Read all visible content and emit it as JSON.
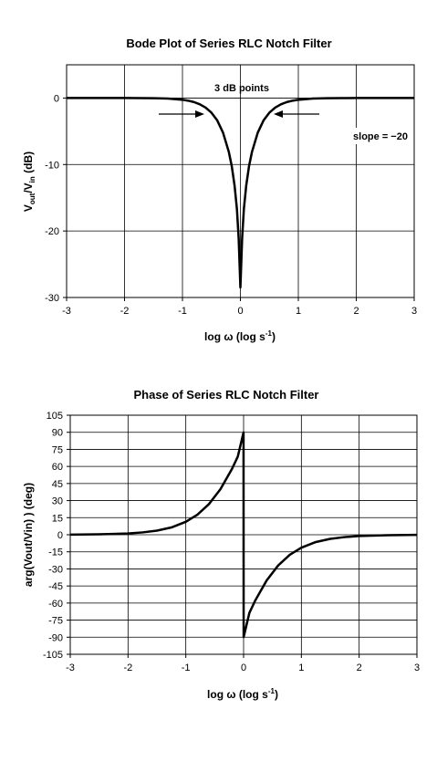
{
  "chart_data": [
    {
      "type": "line",
      "title": "Bode Plot of Series RLC Notch Filter",
      "xlabel": "log ω (log s",
      "xlabel_superscript": "-1",
      "xlabel_suffix": ")",
      "ylabel": "V",
      "ylabel_sub1": "out",
      "ylabel_mid": "/V",
      "ylabel_sub2": "in",
      "ylabel_suffix": " (dB)",
      "xlim": [
        -3,
        3
      ],
      "ylim": [
        -30,
        5
      ],
      "x_ticks": [
        -3,
        -2,
        -1,
        0,
        1,
        2,
        3
      ],
      "x_tick_labels": [
        "-3",
        "-2",
        "-1",
        "0",
        "1",
        "2",
        "3"
      ],
      "y_ticks": [
        0,
        -10,
        -20,
        -30
      ],
      "y_tick_labels": [
        "0",
        "-10",
        "-20",
        "-30"
      ],
      "grid": true,
      "annotations": {
        "three_db": "3 dB points",
        "slope": "slope = −20"
      },
      "series": [
        {
          "x": [
            -3,
            -2.5,
            -2,
            -1.75,
            -1.5,
            -1.25,
            -1,
            -0.9,
            -0.8,
            -0.7,
            -0.6,
            -0.5,
            -0.4,
            -0.3,
            -0.2,
            -0.15,
            -0.1,
            -0.06,
            -0.03,
            0,
            0.03,
            0.06,
            0.1,
            0.15,
            0.2,
            0.3,
            0.4,
            0.5,
            0.6,
            0.7,
            0.8,
            0.9,
            1,
            1.25,
            1.5,
            1.75,
            2,
            2.5,
            3
          ],
          "values": [
            0,
            0,
            0,
            -0.01,
            -0.02,
            -0.08,
            -0.26,
            -0.4,
            -0.61,
            -0.94,
            -1.44,
            -2.2,
            -3.36,
            -5.2,
            -8.1,
            -10.2,
            -13.2,
            -16.7,
            -21.1,
            -28.5,
            -21.1,
            -16.7,
            -13.2,
            -10.2,
            -8.1,
            -5.2,
            -3.36,
            -2.2,
            -1.44,
            -0.94,
            -0.61,
            -0.4,
            -0.26,
            -0.08,
            -0.02,
            -0.01,
            0,
            0,
            0
          ]
        }
      ]
    },
    {
      "type": "line",
      "title": "Phase of Series RLC Notch Filter",
      "xlabel": "log ω (log s",
      "xlabel_superscript": "-1",
      "xlabel_suffix": ")",
      "ylabel": "arg(Vout/Vin) ) (deg)",
      "xlim": [
        -3,
        3
      ],
      "ylim": [
        -105,
        105
      ],
      "x_ticks": [
        -3,
        -2,
        -1,
        0,
        1,
        2,
        3
      ],
      "x_tick_labels": [
        "-3",
        "-2",
        "-1",
        "0",
        "1",
        "2",
        "3"
      ],
      "y_ticks": [
        105,
        90,
        75,
        60,
        45,
        30,
        15,
        0,
        -15,
        -30,
        -45,
        -60,
        -75,
        -90,
        -105
      ],
      "y_tick_labels": [
        "105",
        "90",
        "75",
        "60",
        "45",
        "30",
        "15",
        "0",
        "-15",
        "-30",
        "-45",
        "-60",
        "-75",
        "-90",
        "-105"
      ],
      "grid": true,
      "series": [
        {
          "x": [
            -3,
            -2.5,
            -2,
            -1.75,
            -1.5,
            -1.25,
            -1,
            -0.8,
            -0.6,
            -0.4,
            -0.2,
            -0.1,
            -0.001,
            0.001,
            0.1,
            0.2,
            0.4,
            0.6,
            0.8,
            1,
            1.25,
            1.5,
            1.75,
            2,
            2.5,
            3
          ],
          "values": [
            0.11,
            0.36,
            1.15,
            2.05,
            3.62,
            6.39,
            11.4,
            17.6,
            26.9,
            40.1,
            57.9,
            68.7,
            89.9,
            -89.9,
            -68.7,
            -57.9,
            -40.1,
            -26.9,
            -17.6,
            -11.4,
            -6.39,
            -3.62,
            -2.05,
            -1.15,
            -0.36,
            -0.11
          ]
        }
      ]
    }
  ]
}
